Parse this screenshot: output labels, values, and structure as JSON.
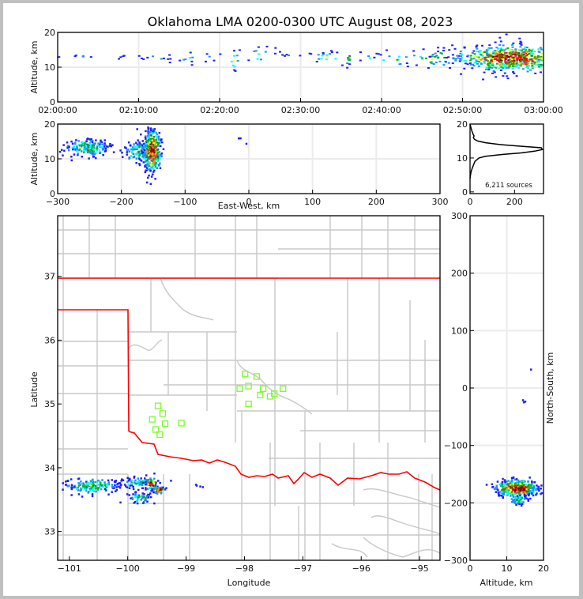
{
  "title": "Oklahoma LMA 0200-0300 UTC August 08, 2023",
  "colors": {
    "grid": "#ebebeb",
    "county": "#c8c8c8",
    "state": "#ff0000",
    "station": "#7cfc2c",
    "density": [
      "#1e1eff",
      "#1e90ff",
      "#00ffff",
      "#00c000",
      "#228b22",
      "#ffff00",
      "#ff8c00",
      "#ff1493",
      "#ff0000",
      "#8b0000",
      "#ffffff"
    ]
  },
  "chart_data": [
    {
      "id": "time_altitude",
      "type": "heatmap",
      "title": "",
      "xlabel": "",
      "ylabel": "Altitude, km",
      "xlim": [
        "02:00:00",
        "03:00:00"
      ],
      "xlim_minutes": [
        0,
        60
      ],
      "ylim": [
        0,
        20
      ],
      "xticks": [
        "02:00:00",
        "02:10:00",
        "02:20:00",
        "02:30:00",
        "02:40:00",
        "02:50:00",
        "03:00:00"
      ],
      "yticks": [
        "0",
        "10",
        "20"
      ],
      "grid": true,
      "clusters": [
        {
          "t_min": 2.5,
          "alt_km": 13.3,
          "spread_t": 1.2,
          "spread_alt": 0.3,
          "n": 6,
          "intensity": 0.1
        },
        {
          "t_min": 7.5,
          "alt_km": 13.5,
          "spread_t": 0.5,
          "spread_alt": 0.5,
          "n": 4,
          "intensity": 0.1
        },
        {
          "t_min": 12,
          "alt_km": 13,
          "spread_t": 1.5,
          "spread_alt": 0.8,
          "n": 10,
          "intensity": 0.15
        },
        {
          "t_min": 17,
          "alt_km": 12.8,
          "spread_t": 2,
          "spread_alt": 0.8,
          "n": 14,
          "intensity": 0.2
        },
        {
          "t_min": 21.7,
          "alt_km": 12.5,
          "spread_t": 0.3,
          "spread_alt": 1.5,
          "n": 10,
          "intensity": 0.5
        },
        {
          "t_min": 24.5,
          "alt_km": 13.5,
          "spread_t": 1.5,
          "spread_alt": 1.5,
          "n": 12,
          "intensity": 0.2
        },
        {
          "t_min": 28.5,
          "alt_km": 14,
          "spread_t": 1,
          "spread_alt": 0.8,
          "n": 8,
          "intensity": 0.15
        },
        {
          "t_min": 33,
          "alt_km": 13,
          "spread_t": 1,
          "spread_alt": 1,
          "n": 16,
          "intensity": 0.45
        },
        {
          "t_min": 35.8,
          "alt_km": 12.5,
          "spread_t": 0.2,
          "spread_alt": 1,
          "n": 10,
          "intensity": 0.55
        },
        {
          "t_min": 38.5,
          "alt_km": 13,
          "spread_t": 0.8,
          "spread_alt": 0.6,
          "n": 6,
          "intensity": 0.2
        },
        {
          "t_min": 41.5,
          "alt_km": 12.5,
          "spread_t": 1.5,
          "spread_alt": 1.5,
          "n": 14,
          "intensity": 0.25
        },
        {
          "t_min": 46.5,
          "alt_km": 13,
          "spread_t": 1.5,
          "spread_alt": 1.5,
          "n": 30,
          "intensity": 0.45
        },
        {
          "t_min": 56,
          "alt_km": 12.8,
          "spread_t": 3.5,
          "spread_alt": 1.8,
          "n": 650,
          "intensity": 0.9
        }
      ]
    },
    {
      "id": "eastwest_altitude",
      "type": "heatmap",
      "xlabel": "East-West, km",
      "ylabel": "Altitude, km",
      "xlim": [
        -300,
        300
      ],
      "ylim": [
        0,
        20
      ],
      "xticks": [
        "-300",
        "-200",
        "-100",
        "0",
        "100",
        "200",
        "300"
      ],
      "yticks": [
        "0",
        "10",
        "20"
      ],
      "grid": true,
      "clusters": [
        {
          "x_km": -255,
          "alt_km": 13.5,
          "spread_x": 18,
          "spread_alt": 1.3,
          "n": 180,
          "intensity": 0.45
        },
        {
          "x_km": -175,
          "alt_km": 12.5,
          "spread_x": 12,
          "spread_alt": 1.5,
          "n": 120,
          "intensity": 0.4
        },
        {
          "x_km": -153,
          "alt_km": 12.5,
          "spread_x": 7,
          "spread_alt": 3,
          "n": 400,
          "intensity": 1.0
        },
        {
          "x_km": -10,
          "alt_km": 17,
          "spread_x": 8,
          "spread_alt": 1.5,
          "n": 4,
          "intensity": 0.05
        }
      ]
    },
    {
      "id": "altitude_histogram",
      "type": "line",
      "xlabel": "",
      "ylabel": "",
      "xlim": [
        0,
        330
      ],
      "ylim": [
        0,
        20
      ],
      "xticks": [
        "0",
        "200"
      ],
      "yticks": [
        "0",
        "10",
        "20"
      ],
      "annotation": "6,211 sources",
      "series": [
        {
          "name": "source count by altitude",
          "alt_km": [
            4,
            5,
            6,
            7,
            8,
            9,
            10,
            10.5,
            11,
            11.5,
            12,
            12.5,
            13,
            13.5,
            14,
            14.5,
            15,
            15.5,
            16,
            16.5,
            17,
            18,
            19,
            20
          ],
          "count": [
            0,
            2,
            5,
            10,
            16,
            22,
            40,
            70,
            140,
            230,
            290,
            325,
            320,
            220,
            130,
            70,
            35,
            20,
            15,
            18,
            14,
            8,
            4,
            0
          ]
        }
      ]
    },
    {
      "id": "plan_view_map",
      "type": "scatter",
      "xlabel": "Longitude",
      "ylabel": "Latitude",
      "xlim": [
        -101.2,
        -94.65
      ],
      "ylim": [
        32.55,
        37.95
      ],
      "xticks": [
        "-101",
        "-100",
        "-99",
        "-98",
        "-97",
        "-96",
        "-95"
      ],
      "yticks": [
        "33",
        "34",
        "35",
        "36",
        "37"
      ],
      "stations": [
        {
          "lon": -99.48,
          "lat": 34.97
        },
        {
          "lon": -99.4,
          "lat": 34.85
        },
        {
          "lon": -99.58,
          "lat": 34.76
        },
        {
          "lon": -99.36,
          "lat": 34.69
        },
        {
          "lon": -99.08,
          "lat": 34.7
        },
        {
          "lon": -99.52,
          "lat": 34.6
        },
        {
          "lon": -99.45,
          "lat": 34.52
        },
        {
          "lon": -97.99,
          "lat": 35.47
        },
        {
          "lon": -97.79,
          "lat": 35.43
        },
        {
          "lon": -97.93,
          "lat": 35.28
        },
        {
          "lon": -98.08,
          "lat": 35.24
        },
        {
          "lon": -97.68,
          "lat": 35.24
        },
        {
          "lon": -97.49,
          "lat": 35.16
        },
        {
          "lon": -97.34,
          "lat": 35.24
        },
        {
          "lon": -97.73,
          "lat": 35.14
        },
        {
          "lon": -97.56,
          "lat": 35.12
        },
        {
          "lon": -97.93,
          "lat": 35.0
        }
      ],
      "clusters": [
        {
          "lon": -100.6,
          "lat": 33.73,
          "spread_lon": 0.25,
          "spread_lat": 0.06,
          "n": 160,
          "intensity": 0.4
        },
        {
          "lon": -99.85,
          "lat": 33.78,
          "spread_lon": 0.15,
          "spread_lat": 0.04,
          "n": 60,
          "intensity": 0.35
        },
        {
          "lon": -99.62,
          "lat": 33.76,
          "spread_lon": 0.05,
          "spread_lat": 0.05,
          "n": 80,
          "intensity": 0.9
        },
        {
          "lon": -99.48,
          "lat": 33.67,
          "spread_lon": 0.05,
          "spread_lat": 0.03,
          "n": 60,
          "intensity": 0.95
        },
        {
          "lon": -99.8,
          "lat": 33.54,
          "spread_lon": 0.1,
          "spread_lat": 0.04,
          "n": 50,
          "intensity": 0.4
        },
        {
          "lon": -98.75,
          "lat": 33.73,
          "spread_lon": 0.05,
          "spread_lat": 0.01,
          "n": 4,
          "intensity": 0.1
        }
      ]
    },
    {
      "id": "northsouth_altitude",
      "type": "heatmap",
      "xlabel": "Altitude, km",
      "ylabel": "North-South, km",
      "xlim": [
        0,
        20
      ],
      "ylim": [
        -300,
        300
      ],
      "xticks": [
        "0",
        "10",
        "20"
      ],
      "yticks": [
        "-300",
        "-200",
        "-100",
        "0",
        "100",
        "200",
        "300"
      ],
      "grid": true,
      "clusters": [
        {
          "alt_km": 12.5,
          "y_km": -173,
          "spread_alt": 2.8,
          "spread_y": 7,
          "n": 450,
          "intensity": 1.0
        },
        {
          "alt_km": 13,
          "y_km": -193,
          "spread_alt": 1.2,
          "spread_y": 4,
          "n": 50,
          "intensity": 0.4
        },
        {
          "alt_km": 16.5,
          "y_km": 35,
          "spread_alt": 0.1,
          "spread_y": 1,
          "n": 1,
          "intensity": 0.05
        },
        {
          "alt_km": 15,
          "y_km": -22,
          "spread_alt": 0.6,
          "spread_y": 1,
          "n": 3,
          "intensity": 0.1
        }
      ]
    }
  ]
}
